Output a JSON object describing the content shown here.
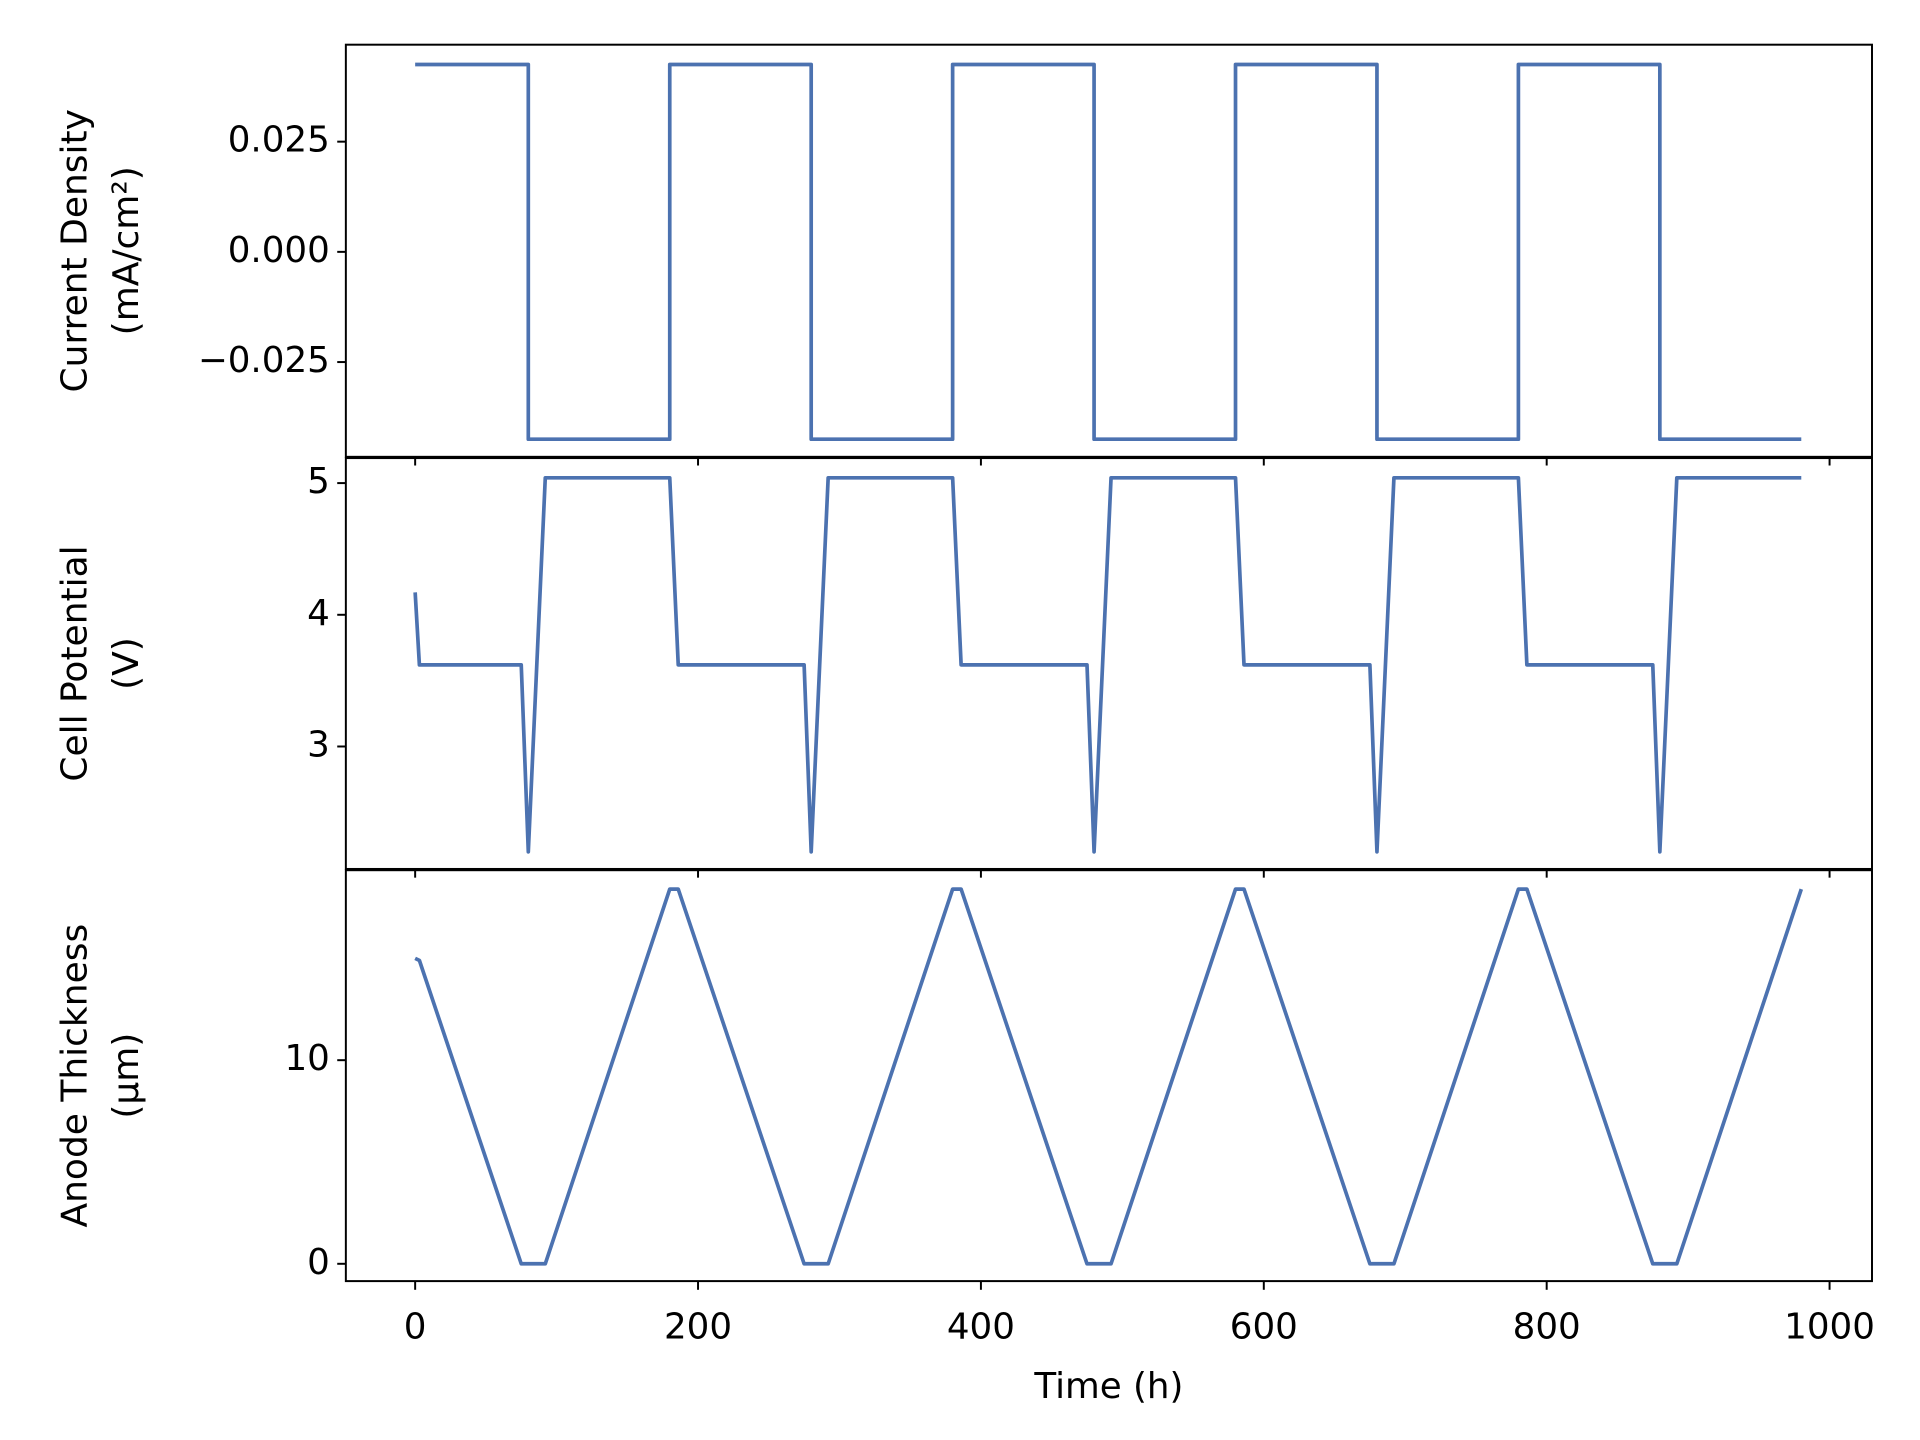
{
  "chart_data": [
    {
      "type": "line",
      "ylabel": [
        "Current Density",
        "(mA/cm²)"
      ],
      "xlim": [
        -49,
        1030
      ],
      "ylim": [
        -0.0465,
        0.047
      ],
      "yticks": [
        {
          "value": -0.025,
          "label": "−0.025"
        },
        {
          "value": 0,
          "label": "0.000"
        },
        {
          "value": 0.025,
          "label": "0.025"
        }
      ],
      "series": [
        {
          "color": "#4c72b0",
          "x": [
            0,
            80,
            80,
            180,
            180,
            280,
            280,
            380,
            380,
            480,
            480,
            580,
            580,
            680,
            680,
            780,
            780,
            880,
            880,
            980
          ],
          "values": [
            0.0425,
            0.0425,
            -0.0425,
            -0.0425,
            0.0425,
            0.0425,
            -0.0425,
            -0.0425,
            0.0425,
            0.0425,
            -0.0425,
            -0.0425,
            0.0425,
            0.0425,
            -0.0425,
            -0.0425,
            0.0425,
            0.0425,
            -0.0425,
            -0.0425
          ]
        }
      ]
    },
    {
      "type": "line",
      "ylabel": [
        "Cell Potential",
        "(V)"
      ],
      "xlim": [
        -49,
        1030
      ],
      "ylim": [
        2.07,
        5.19
      ],
      "yticks": [
        3,
        4,
        5
      ],
      "series": [
        {
          "color": "#4c72b0",
          "x": [
            0,
            3,
            75,
            80,
            92,
            180,
            186,
            275,
            280,
            292,
            380,
            386,
            475,
            480,
            492,
            580,
            586,
            675,
            680,
            692,
            780,
            786,
            875,
            880,
            892,
            980
          ],
          "values": [
            4.17,
            3.62,
            3.62,
            2.2,
            5.04,
            5.04,
            3.62,
            3.62,
            2.2,
            5.04,
            5.04,
            3.62,
            3.62,
            2.2,
            5.04,
            5.04,
            3.62,
            3.62,
            2.2,
            5.04,
            5.04,
            3.62,
            3.62,
            2.2,
            5.04,
            5.04
          ]
        }
      ]
    },
    {
      "type": "line",
      "ylabel": [
        "Anode Thickness",
        "(μm)"
      ],
      "xlabel": "Time (h)",
      "xlim": [
        -49,
        1030
      ],
      "ylim": [
        -0.85,
        19.33
      ],
      "xticks": [
        0,
        200,
        400,
        600,
        800,
        1000
      ],
      "yticks": [
        0,
        10
      ],
      "series": [
        {
          "color": "#4c72b0",
          "x": [
            0,
            3,
            75,
            92,
            180,
            186,
            275,
            292,
            380,
            386,
            475,
            492,
            580,
            586,
            675,
            692,
            780,
            786,
            875,
            892,
            980
          ],
          "values": [
            15.0,
            14.9,
            0,
            0,
            18.4,
            18.4,
            0,
            0,
            18.4,
            18.4,
            0,
            0,
            18.4,
            18.4,
            0,
            0,
            18.4,
            18.4,
            0,
            0,
            18.4
          ]
        }
      ]
    }
  ]
}
